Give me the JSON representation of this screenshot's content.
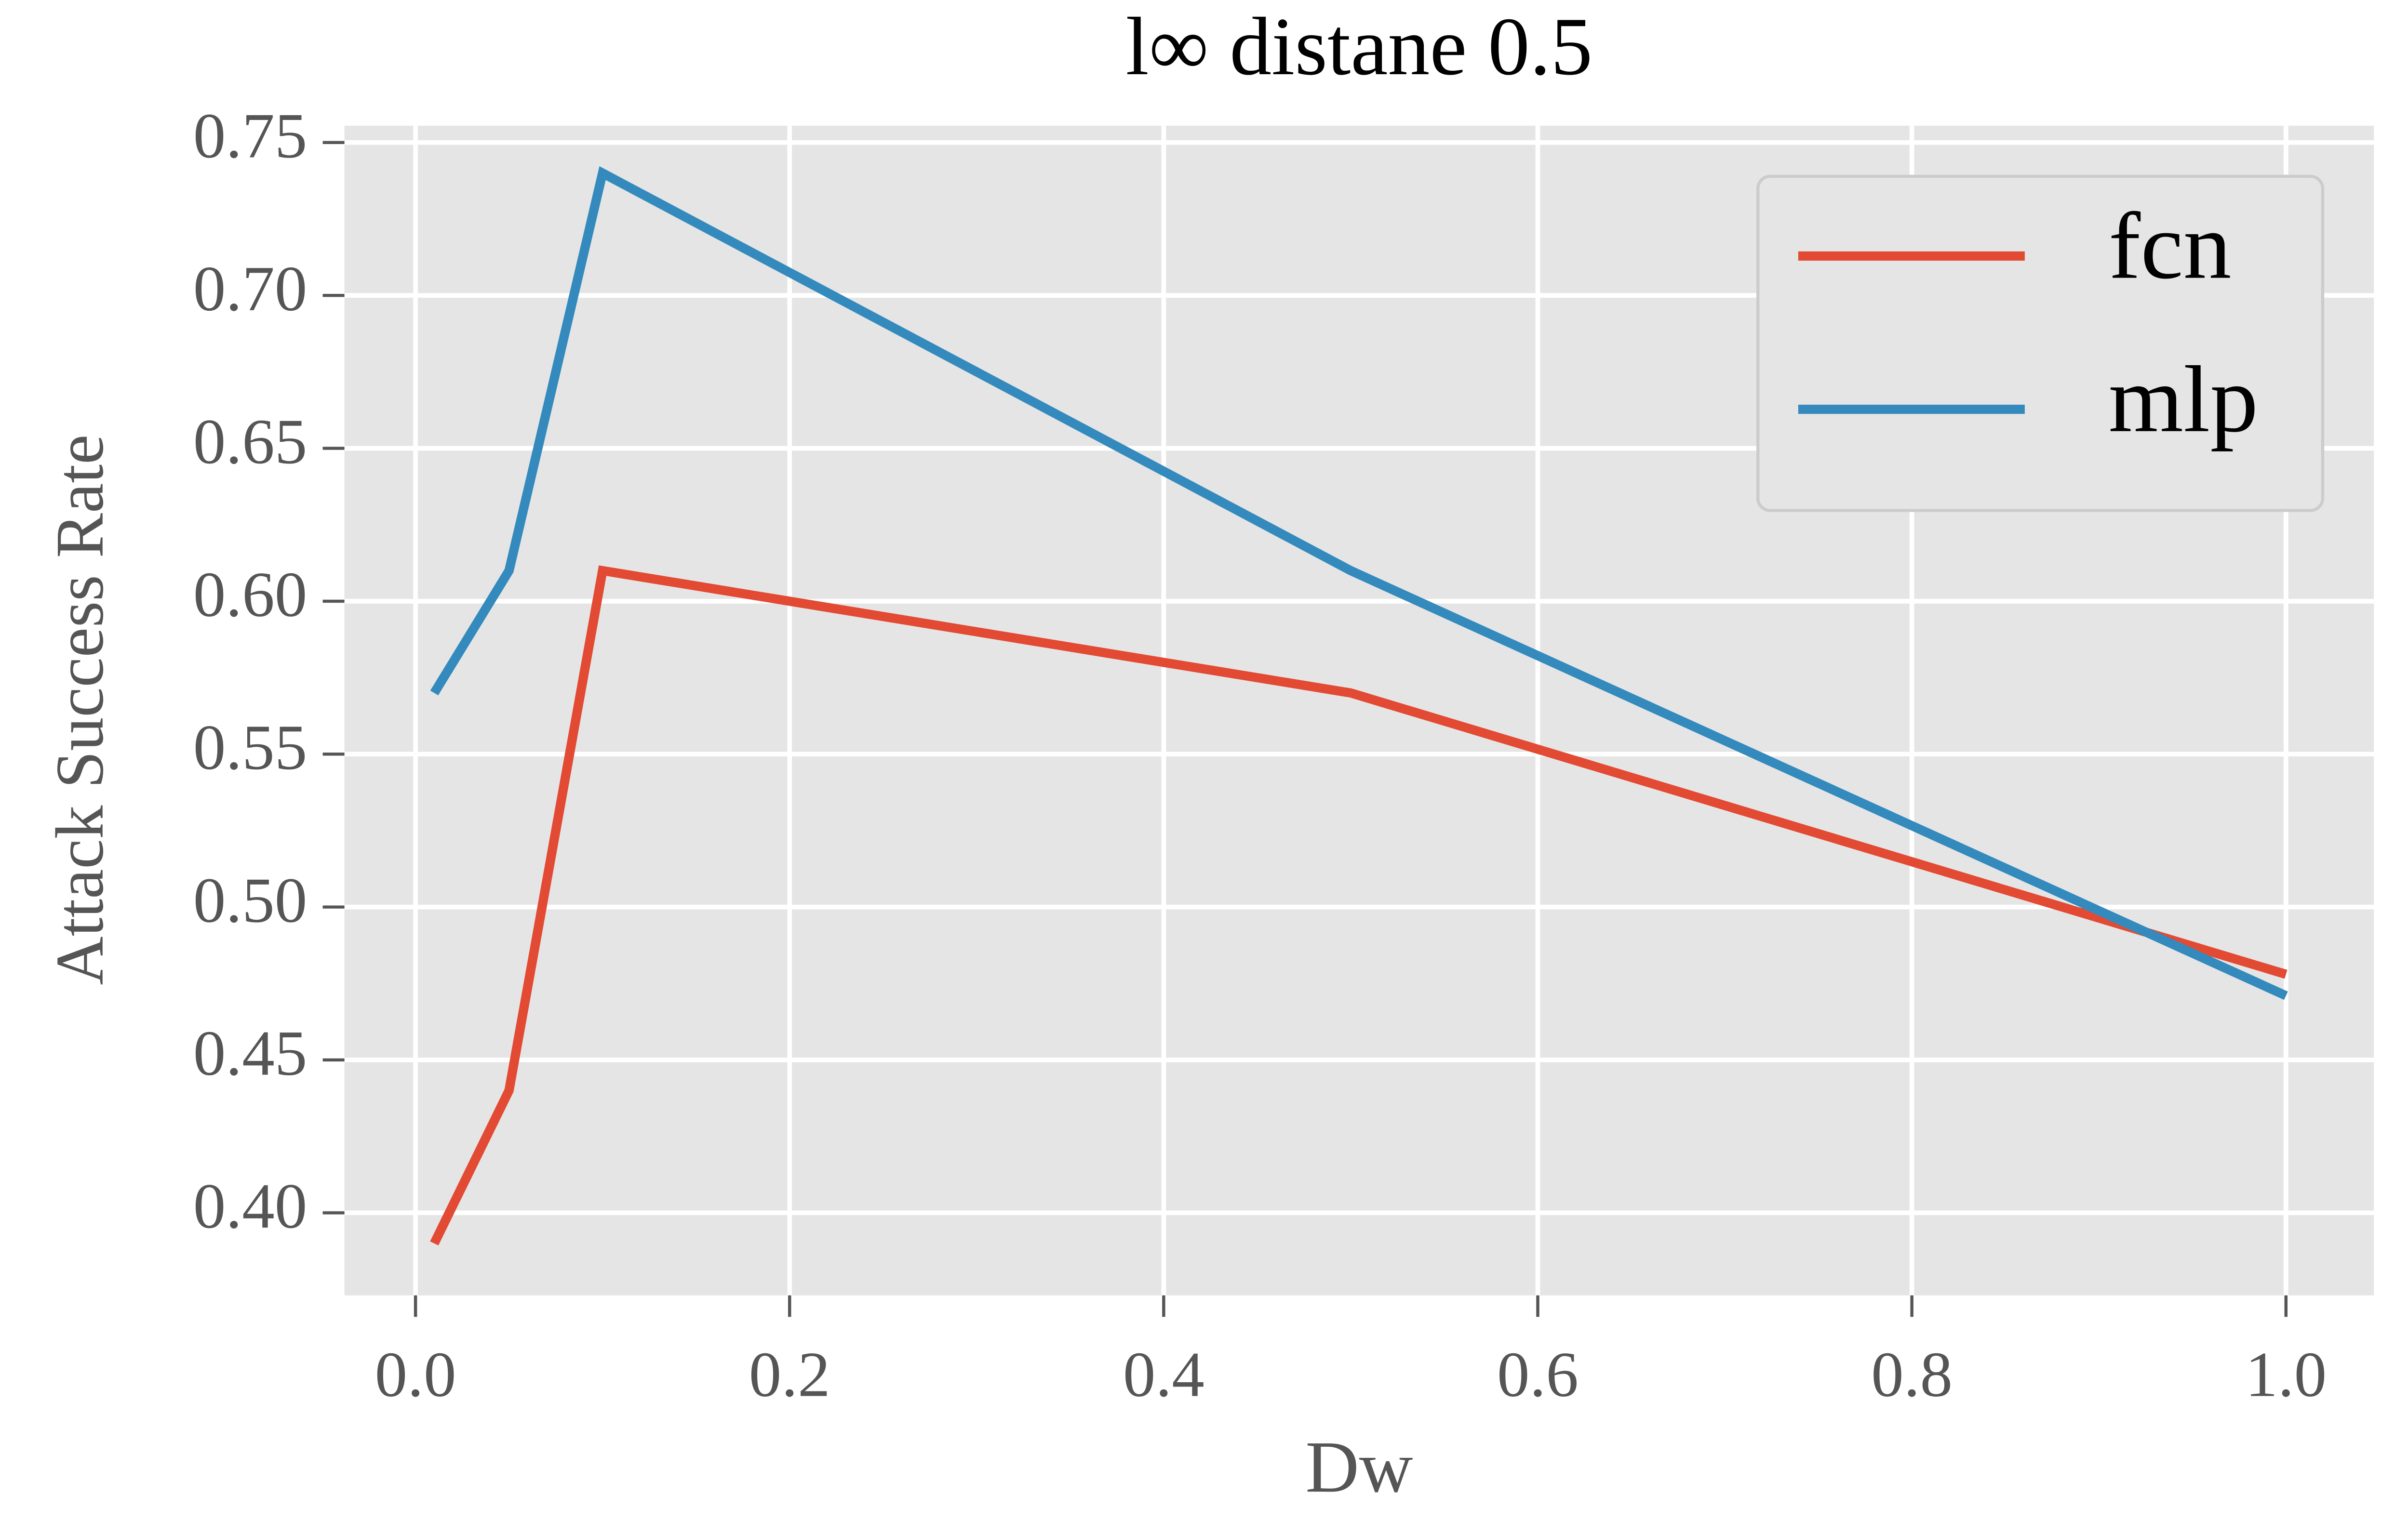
{
  "chart_data": {
    "type": "line",
    "title": "l∞ distane 0.5",
    "x_label": "Dw",
    "y_label": "Attack Success Rate",
    "x": [
      0.01,
      0.05,
      0.1,
      0.5,
      1.0
    ],
    "series": [
      {
        "name": "fcn",
        "color": "#E24A33",
        "values": [
          0.39,
          0.44,
          0.61,
          0.57,
          0.478
        ]
      },
      {
        "name": "mlp",
        "color": "#348ABD",
        "values": [
          0.57,
          0.61,
          0.74,
          0.61,
          0.471
        ]
      }
    ],
    "xlim": [
      -0.038,
      1.047
    ],
    "xticks": [
      {
        "value": 0,
        "label": "0.0"
      },
      0.2,
      0.4,
      0.6,
      0.8,
      {
        "value": 1,
        "label": "1.0"
      }
    ],
    "ylim": [
      0.373,
      0.7555
    ],
    "yticks": [
      {
        "value": 0.4,
        "label": "0.40"
      },
      0.45,
      {
        "value": 0.5,
        "label": "0.50"
      },
      0.55,
      {
        "value": 0.6,
        "label": "0.60"
      },
      0.65,
      {
        "value": 0.7,
        "label": "0.70"
      },
      0.75
    ],
    "grid": true,
    "legend": "upper right"
  }
}
